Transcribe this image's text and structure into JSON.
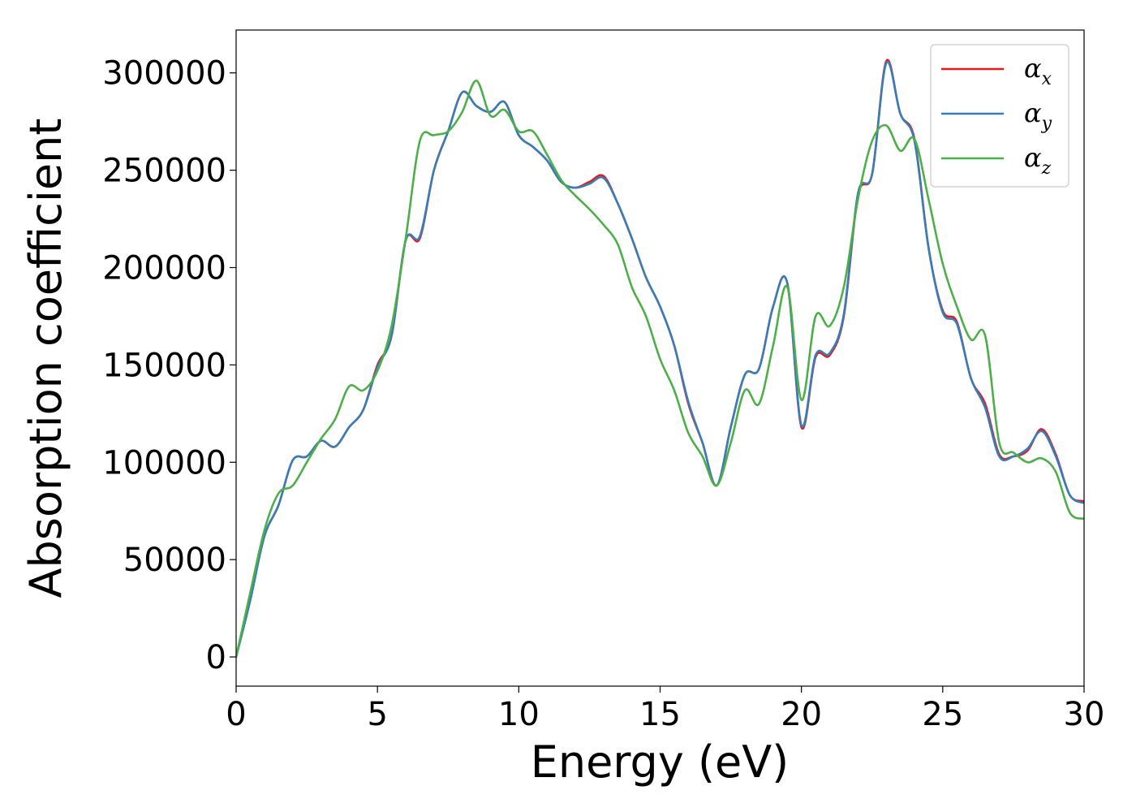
{
  "chart_data": {
    "type": "line",
    "xlabel": "Energy (eV)",
    "ylabel": "Absorption coefficient",
    "xlim": [
      0,
      30
    ],
    "ylim": [
      -15000,
      322000
    ],
    "xticks": [
      "0",
      "5",
      "10",
      "15",
      "20",
      "25",
      "30"
    ],
    "yticks": [
      "0",
      "50000",
      "100000",
      "150000",
      "200000",
      "250000",
      "300000"
    ],
    "grid": false,
    "legend_position": "top-right",
    "x": [
      0,
      0.5,
      1,
      1.5,
      2,
      2.5,
      3,
      3.5,
      4,
      4.5,
      5,
      5.5,
      6,
      6.5,
      7,
      7.5,
      8,
      8.5,
      9,
      9.5,
      10,
      10.5,
      11,
      11.5,
      12,
      12.5,
      13,
      13.5,
      14,
      14.5,
      15,
      15.5,
      16,
      16.5,
      17,
      17.5,
      18,
      18.5,
      19,
      19.5,
      20,
      20.5,
      21,
      21.5,
      22,
      22.5,
      23,
      23.5,
      24,
      24.5,
      25,
      25.5,
      26,
      26.5,
      27,
      27.5,
      28,
      28.5,
      29,
      29.5,
      30
    ],
    "series": [
      {
        "name": "αx",
        "label_base": "α",
        "label_sub": "x",
        "color": "#e41a1c",
        "values": [
          0,
          30000,
          62000,
          78000,
          101000,
          103000,
          111000,
          108000,
          118000,
          127000,
          150000,
          165000,
          214000,
          215000,
          250000,
          270000,
          290000,
          283000,
          280000,
          285000,
          268000,
          262000,
          255000,
          244000,
          241000,
          244000,
          247000,
          233000,
          215000,
          195000,
          180000,
          160000,
          130000,
          110000,
          88000,
          118000,
          145000,
          148000,
          180000,
          192000,
          118000,
          154000,
          155000,
          175000,
          237000,
          248000,
          306000,
          279000,
          266000,
          210000,
          178000,
          172000,
          143000,
          130000,
          104000,
          103000,
          106000,
          117000,
          104000,
          83000,
          80000
        ]
      },
      {
        "name": "αy",
        "label_base": "α",
        "label_sub": "y",
        "color": "#377eb8",
        "values": [
          0,
          29000,
          62000,
          78000,
          101000,
          103000,
          111000,
          108000,
          118000,
          127000,
          149000,
          165000,
          214000,
          216000,
          250000,
          270000,
          290000,
          283000,
          280000,
          285000,
          268000,
          262000,
          255000,
          244000,
          241000,
          243000,
          246000,
          233000,
          215000,
          195000,
          180000,
          160000,
          131000,
          110000,
          88000,
          118000,
          145000,
          148000,
          180000,
          192000,
          119000,
          155000,
          156000,
          176000,
          238000,
          248000,
          305000,
          279000,
          265000,
          210000,
          177000,
          171000,
          143000,
          128000,
          103000,
          103000,
          107000,
          116000,
          103000,
          83000,
          79000
        ]
      },
      {
        "name": "αz",
        "label_base": "α",
        "label_sub": "z",
        "color": "#4daf4a",
        "values": [
          0,
          33000,
          65000,
          84000,
          88000,
          100000,
          112000,
          122000,
          139000,
          137000,
          147000,
          170000,
          215000,
          265000,
          268000,
          270000,
          280000,
          296000,
          278000,
          281000,
          270000,
          270000,
          258000,
          245000,
          237000,
          230000,
          222000,
          212000,
          190000,
          175000,
          153000,
          137000,
          115000,
          103000,
          88000,
          110000,
          137000,
          130000,
          160000,
          190000,
          132000,
          175000,
          170000,
          190000,
          235000,
          265000,
          273000,
          260000,
          266000,
          235000,
          202000,
          180000,
          163000,
          165000,
          110000,
          105000,
          100000,
          102000,
          95000,
          74000,
          71000
        ]
      }
    ]
  }
}
